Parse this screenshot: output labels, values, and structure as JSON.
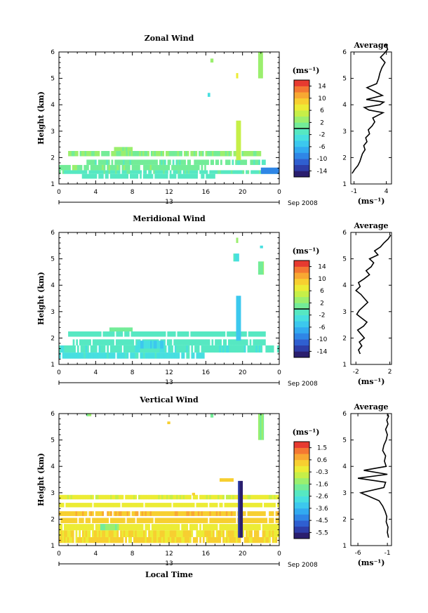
{
  "chart_data": {
    "type": "heatmap",
    "date_label": "Sep 2008",
    "day_label": "13",
    "xlabel_common": "Local Time",
    "x_ticks": [
      "0",
      "4",
      "8",
      "12",
      "16",
      "20",
      "0"
    ],
    "panels": [
      {
        "title": "Zonal Wind",
        "ylabel": "Height (km)",
        "ylim": [
          1,
          6
        ],
        "y_ticks": [
          "1",
          "2",
          "3",
          "4",
          "5",
          "6"
        ],
        "xlim": [
          0,
          24
        ],
        "colorbar": {
          "units": "(ms⁻¹)",
          "ticks": [
            "14",
            "10",
            "6",
            "2",
            "-2",
            "-6",
            "-10",
            "-14"
          ],
          "vmin": -16,
          "vmax": 16,
          "zero_line": 0
        },
        "profile": {
          "title": "Average",
          "xlabel": "(ms⁻¹)",
          "x_ticks": [
            "-1",
            "4"
          ],
          "xlim": [
            -1.5,
            4.8
          ],
          "ylim": [
            1,
            6
          ],
          "y_ticks": [
            "1",
            "2",
            "3",
            "4",
            "5",
            "6"
          ],
          "x": [
            -1.3,
            -0.9,
            -0.4,
            -0.1,
            0.1,
            0.3,
            0.7,
            0.5,
            1.0,
            0.8,
            1.4,
            1.2,
            1.8,
            2.2,
            1.9,
            2.7,
            3.5,
            1.3,
            0.6,
            3.0,
            3.6,
            0.9,
            3.4,
            2.2,
            1.0,
            2.5,
            2.8,
            3.0,
            3.3,
            3.8,
            3.1,
            3.7,
            4.2,
            3.9
          ],
          "y": [
            1.4,
            1.55,
            1.7,
            1.85,
            2.0,
            2.15,
            2.3,
            2.45,
            2.6,
            2.75,
            2.9,
            3.05,
            3.2,
            3.35,
            3.5,
            3.6,
            3.7,
            3.8,
            3.9,
            4.0,
            4.1,
            4.2,
            4.35,
            4.5,
            4.65,
            4.8,
            5.0,
            5.2,
            5.4,
            5.6,
            5.8,
            5.95,
            6.1,
            6.3
          ]
        }
      },
      {
        "title": "Meridional Wind",
        "ylabel": "Height (km)",
        "ylim": [
          1,
          6
        ],
        "y_ticks": [
          "1",
          "2",
          "3",
          "4",
          "5",
          "6"
        ],
        "xlim": [
          0,
          24
        ],
        "colorbar": {
          "units": "(ms⁻¹)",
          "ticks": [
            "14",
            "10",
            "6",
            "2",
            "-2",
            "-6",
            "-10",
            "-14"
          ],
          "vmin": -16,
          "vmax": 16,
          "zero_line": 0
        },
        "profile": {
          "title": "Average",
          "xlabel": "(ms⁻¹)",
          "x_ticks": [
            "-2",
            "2"
          ],
          "xlim": [
            -2.6,
            2.2
          ],
          "ylim": [
            1,
            6
          ],
          "y_ticks": [
            "1",
            "2",
            "3",
            "4",
            "5",
            "6"
          ],
          "x": [
            -1.5,
            -1.7,
            -1.3,
            -1.6,
            -1.0,
            -1.4,
            -1.8,
            -1.1,
            -0.7,
            -1.3,
            -1.9,
            -1.6,
            -1.1,
            -0.6,
            -1.0,
            -1.4,
            -2.0,
            -1.5,
            -1.7,
            -1.0,
            -0.4,
            -0.8,
            -0.2,
            0.1,
            -0.4,
            0.6,
            0.2,
            0.9,
            1.3,
            1.8,
            2.1
          ],
          "y": [
            1.4,
            1.55,
            1.7,
            1.85,
            2.0,
            2.15,
            2.3,
            2.45,
            2.6,
            2.75,
            2.9,
            3.05,
            3.2,
            3.35,
            3.5,
            3.65,
            3.8,
            3.95,
            4.1,
            4.25,
            4.4,
            4.55,
            4.7,
            4.85,
            5.0,
            5.15,
            5.3,
            5.45,
            5.6,
            5.75,
            5.9
          ]
        }
      },
      {
        "title": "Vertical Wind",
        "ylabel": "Height (km)",
        "ylim": [
          1,
          6
        ],
        "y_ticks": [
          "1",
          "2",
          "3",
          "4",
          "5",
          "6"
        ],
        "xlim": [
          0,
          24
        ],
        "colorbar": {
          "units": "(ms⁻¹)",
          "ticks": [
            "1.5",
            "0.6",
            "-0.3",
            "-1.6",
            "-2.6",
            "-3.6",
            "-4.5",
            "-5.5"
          ],
          "vmin": -6,
          "vmax": 2,
          "zero_line": null
        },
        "profile": {
          "title": "Average",
          "xlabel": "(ms⁻¹)",
          "x_ticks": [
            "-6",
            "-1"
          ],
          "xlim": [
            -7.2,
            -0.3
          ],
          "ylim": [
            1,
            6
          ],
          "y_ticks": [
            "1",
            "2",
            "3",
            "4",
            "5",
            "6"
          ],
          "x": [
            -0.8,
            -1.0,
            -0.9,
            -1.2,
            -1.1,
            -1.4,
            -1.8,
            -2.4,
            -5.5,
            -1.6,
            -1.3,
            -6.0,
            -1.0,
            -5.0,
            -1.2,
            -1.5,
            -1.3,
            -1.8,
            -1.6,
            -1.2,
            -1.0,
            -1.3,
            -0.9,
            -1.1,
            -0.8,
            -1.0
          ],
          "y": [
            1.3,
            1.5,
            1.7,
            1.9,
            2.1,
            2.3,
            2.5,
            2.7,
            3.0,
            3.2,
            3.4,
            3.55,
            3.7,
            3.85,
            4.0,
            4.2,
            4.4,
            4.6,
            4.8,
            5.0,
            5.2,
            5.4,
            5.6,
            5.75,
            5.9,
            6.0
          ]
        }
      }
    ],
    "layers": [
      [
        {
          "t0": 0.0,
          "t1": 24.0,
          "h0": 1.38,
          "h1": 1.52,
          "v": -0.5
        },
        {
          "t0": 0.0,
          "t1": 16.0,
          "h0": 1.52,
          "h1": 1.72,
          "v": 1.5
        },
        {
          "t0": 3.0,
          "t1": 22.5,
          "h0": 1.72,
          "h1": 1.92,
          "v": 0.5
        },
        {
          "t0": 1.0,
          "t1": 22.0,
          "h0": 2.05,
          "h1": 2.25,
          "v": 2.0
        },
        {
          "t0": 6.0,
          "t1": 8.0,
          "h0": 2.25,
          "h1": 2.4,
          "v": 2.5
        },
        {
          "t0": 2.5,
          "t1": 17.0,
          "h0": 1.2,
          "h1": 1.38,
          "v": -1.0
        },
        {
          "t0": 22.0,
          "t1": 24.0,
          "h0": 1.38,
          "h1": 1.62,
          "v": -9.0
        },
        {
          "t0": 19.3,
          "t1": 19.8,
          "h0": 1.9,
          "h1": 3.4,
          "v": 4.5
        },
        {
          "t0": 21.7,
          "t1": 22.2,
          "h0": 5.0,
          "h1": 6.0,
          "v": 3.0
        },
        {
          "t0": 16.5,
          "t1": 16.8,
          "h0": 5.6,
          "h1": 5.75,
          "v": 3.0
        },
        {
          "t0": 16.2,
          "t1": 16.45,
          "h0": 4.3,
          "h1": 4.45,
          "v": -3.0
        },
        {
          "t0": 19.3,
          "t1": 19.5,
          "h0": 5.0,
          "h1": 5.2,
          "v": 6.0
        }
      ],
      [
        {
          "t0": 0.0,
          "t1": 24.0,
          "h0": 1.45,
          "h1": 1.72,
          "v": -1.5
        },
        {
          "t0": 0.0,
          "t1": 16.0,
          "h0": 1.22,
          "h1": 1.45,
          "v": -2.5
        },
        {
          "t0": 1.5,
          "t1": 22.5,
          "h0": 1.72,
          "h1": 1.95,
          "v": -0.8
        },
        {
          "t0": 1.0,
          "t1": 22.5,
          "h0": 2.05,
          "h1": 2.25,
          "v": -1.0
        },
        {
          "t0": 5.5,
          "t1": 8.0,
          "h0": 2.25,
          "h1": 2.4,
          "v": 1.0
        },
        {
          "t0": 8.5,
          "t1": 11.5,
          "h0": 1.6,
          "h1": 1.9,
          "v": -4.0
        },
        {
          "t0": 19.3,
          "t1": 19.8,
          "h0": 1.9,
          "h1": 3.6,
          "v": -5.0
        },
        {
          "t0": 19.0,
          "t1": 19.6,
          "h0": 4.9,
          "h1": 5.2,
          "v": -2.5
        },
        {
          "t0": 21.7,
          "t1": 22.3,
          "h0": 4.4,
          "h1": 4.9,
          "v": 1.5
        },
        {
          "t0": 19.3,
          "t1": 19.5,
          "h0": 5.6,
          "h1": 5.8,
          "v": 3.0
        },
        {
          "t0": 21.9,
          "t1": 22.2,
          "h0": 5.4,
          "h1": 5.5,
          "v": -2.5
        }
      ],
      [
        {
          "t0": 0.0,
          "t1": 24.0,
          "h0": 1.1,
          "h1": 1.32,
          "v": 0.1
        },
        {
          "t0": 0.0,
          "t1": 24.0,
          "h0": 1.32,
          "h1": 1.58,
          "v": 0.0
        },
        {
          "t0": 0.0,
          "t1": 24.0,
          "h0": 1.58,
          "h1": 1.82,
          "v": -0.3
        },
        {
          "t0": 0.0,
          "t1": 24.0,
          "h0": 1.85,
          "h1": 2.05,
          "v": 0.3
        },
        {
          "t0": 0.0,
          "t1": 24.0,
          "h0": 2.12,
          "h1": 2.3,
          "v": 0.4
        },
        {
          "t0": 0.0,
          "t1": 24.0,
          "h0": 2.45,
          "h1": 2.62,
          "v": -0.3
        },
        {
          "t0": 0.0,
          "t1": 24.0,
          "h0": 2.75,
          "h1": 2.92,
          "v": -0.4
        },
        {
          "t0": 4.5,
          "t1": 6.5,
          "h0": 1.58,
          "h1": 1.82,
          "v": -1.5
        },
        {
          "t0": 19.5,
          "t1": 20.0,
          "h0": 1.3,
          "h1": 3.45,
          "v": -5.4
        },
        {
          "t0": 17.5,
          "t1": 19.0,
          "h0": 3.42,
          "h1": 3.55,
          "v": 0.2
        },
        {
          "t0": 21.7,
          "t1": 22.3,
          "h0": 5.0,
          "h1": 6.0,
          "v": -1.5
        },
        {
          "t0": 3.0,
          "t1": 3.5,
          "h0": 5.9,
          "h1": 6.0,
          "v": -1.5
        },
        {
          "t0": 11.8,
          "t1": 12.1,
          "h0": 5.6,
          "h1": 5.7,
          "v": 0.3
        },
        {
          "t0": 16.5,
          "t1": 16.8,
          "h0": 5.85,
          "h1": 6.0,
          "v": -1.5
        },
        {
          "t0": 14.5,
          "t1": 14.8,
          "h0": 2.9,
          "h1": 3.0,
          "v": 0.3
        }
      ]
    ]
  }
}
